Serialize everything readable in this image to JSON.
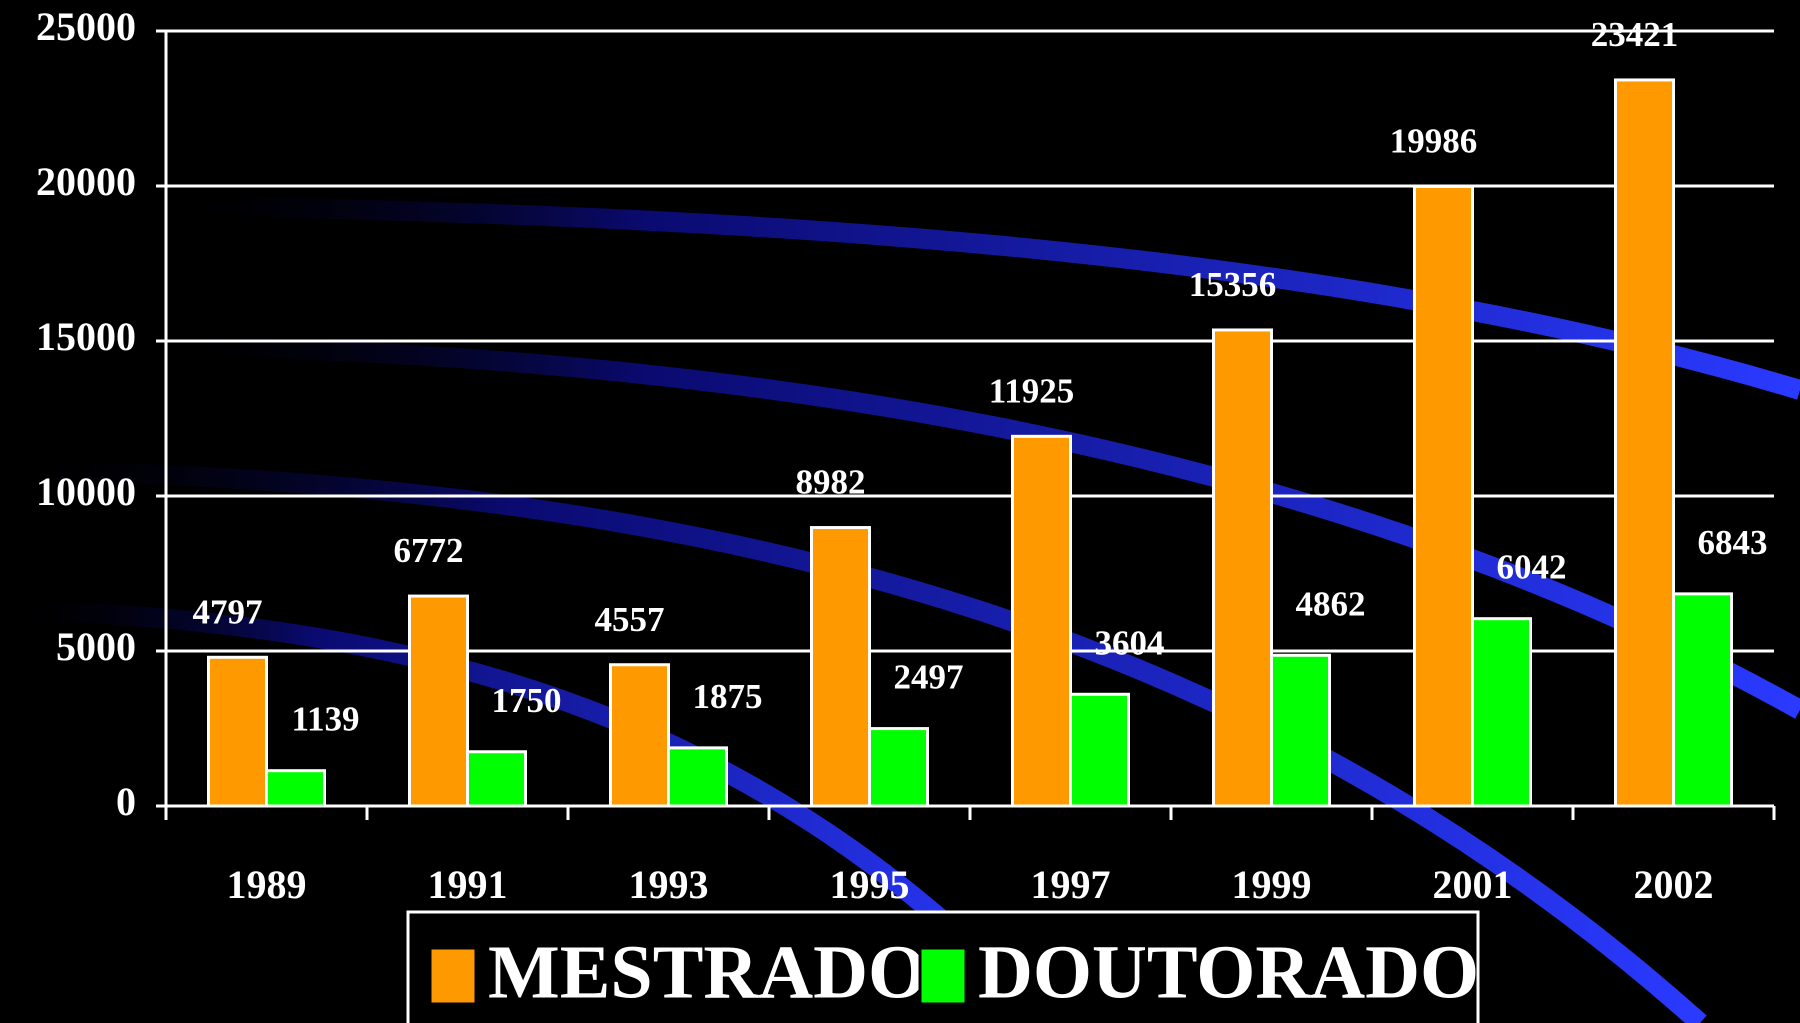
{
  "chart_data": {
    "type": "bar",
    "categories": [
      "1989",
      "1991",
      "1993",
      "1995",
      "1997",
      "1999",
      "2001",
      "2002"
    ],
    "series": [
      {
        "name": "MESTRADO",
        "color": "#ff9900",
        "values": [
          4797,
          6772,
          4557,
          8982,
          11925,
          15356,
          19986,
          23421
        ]
      },
      {
        "name": "DOUTORADO",
        "color": "#00ff00",
        "values": [
          1139,
          1750,
          1875,
          2497,
          3604,
          4862,
          6042,
          6843
        ]
      }
    ],
    "ylim": [
      0,
      25000
    ],
    "yticks": [
      0,
      5000,
      10000,
      15000,
      20000,
      25000
    ],
    "grid": true
  }
}
